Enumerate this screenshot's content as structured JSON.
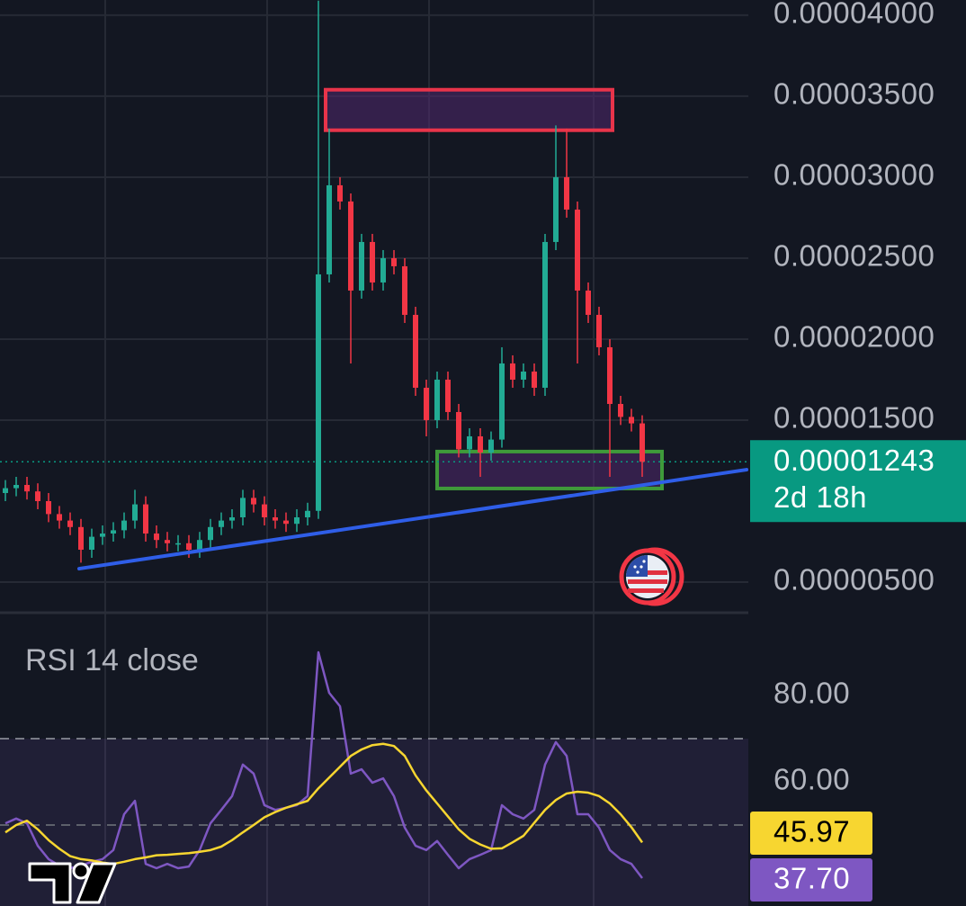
{
  "chart_data": [
    {
      "type": "candlestick",
      "up_color": "#22ab94",
      "down_color": "#f23645",
      "open": [
        1.05e-05,
        1.08e-05,
        1.1e-05,
        1.06e-05,
        1e-05,
        9.2e-06,
        8.8e-06,
        8.4e-06,
        7e-06,
        7.8e-06,
        8e-06,
        8.2e-06,
        8.8e-06,
        9.8e-06,
        8e-06,
        7.6e-06,
        7.4e-06,
        7.4e-06,
        7e-06,
        7.6e-06,
        8.4e-06,
        8.8e-06,
        9e-06,
        1.02e-05,
        9.8e-06,
        9e-06,
        8.8e-06,
        8.6e-06,
        9e-06,
        9.4e-06,
        2.4e-05,
        2.95e-05,
        2.85e-05,
        2.3e-05,
        2.6e-05,
        2.35e-05,
        2.5e-05,
        2.45e-05,
        2.15e-05,
        1.7e-05,
        1.5e-05,
        1.75e-05,
        1.55e-05,
        1.32e-05,
        1.4e-05,
        1.3e-05,
        1.38e-05,
        1.85e-05,
        1.75e-05,
        1.8e-05,
        1.7e-05,
        2.6e-05,
        3e-05,
        2.8e-05,
        2.3e-05,
        2.15e-05,
        1.95e-05,
        1.6e-05,
        1.52e-05,
        1.48e-05
      ],
      "high": [
        1.13e-05,
        1.15e-05,
        1.15e-05,
        1.11e-05,
        1.05e-05,
        9.7e-06,
        9.3e-06,
        8.9e-06,
        8.3e-06,
        8.5e-06,
        8.7e-06,
        9.3e-06,
        1.07e-05,
        1.03e-05,
        8.5e-06,
        8.1e-06,
        7.9e-06,
        7.9e-06,
        8.1e-06,
        8.9e-06,
        9.3e-06,
        9.5e-06,
        1.07e-05,
        1.07e-05,
        1.03e-05,
        9.5e-06,
        9.3e-06,
        9.5e-06,
        9.9e-06,
        4.09e-05,
        3.3e-05,
        3e-05,
        2.9e-05,
        2.65e-05,
        2.65e-05,
        2.55e-05,
        2.55e-05,
        2.5e-05,
        2.2e-05,
        1.75e-05,
        1.8e-05,
        1.8e-05,
        1.6e-05,
        1.45e-05,
        1.45e-05,
        1.43e-05,
        1.95e-05,
        1.9e-05,
        1.85e-05,
        1.85e-05,
        2.65e-05,
        3.32e-05,
        3.3e-05,
        2.85e-05,
        2.35e-05,
        2.2e-05,
        2e-05,
        1.65e-05,
        1.57e-05,
        1.53e-05
      ],
      "low": [
        1e-05,
        1.03e-05,
        1.01e-05,
        9.5e-06,
        8.7e-06,
        8.3e-06,
        7.9e-06,
        6.2e-06,
        6.5e-06,
        7.3e-06,
        7.5e-06,
        7.7e-06,
        8.3e-06,
        7.5e-06,
        7.1e-06,
        6.9e-06,
        6.9e-06,
        6.5e-06,
        6.5e-06,
        7.1e-06,
        7.9e-06,
        8.3e-06,
        8.5e-06,
        9.3e-06,
        8.5e-06,
        8.3e-06,
        8.1e-06,
        8.1e-06,
        8.5e-06,
        8.9e-06,
        2.35e-05,
        2.8e-05,
        1.85e-05,
        2.25e-05,
        2.3e-05,
        2.3e-05,
        2.4e-05,
        2.1e-05,
        1.65e-05,
        1.4e-05,
        1.45e-05,
        1.5e-05,
        1.27e-05,
        1.27e-05,
        1.15e-05,
        1.25e-05,
        1.33e-05,
        1.7e-05,
        1.7e-05,
        1.65e-05,
        1.65e-05,
        2.55e-05,
        2.75e-05,
        1.85e-05,
        2.1e-05,
        1.9e-05,
        1.15e-05,
        1.47e-05,
        1.43e-05,
        1.15e-05
      ],
      "close": [
        1.08e-05,
        1.1e-05,
        1.06e-05,
        1e-05,
        9.2e-06,
        8.8e-06,
        8.4e-06,
        7e-06,
        7.8e-06,
        8e-06,
        8.2e-06,
        8.8e-06,
        9.8e-06,
        8e-06,
        7.6e-06,
        7.4e-06,
        7.4e-06,
        7e-06,
        7.6e-06,
        8.4e-06,
        8.8e-06,
        9e-06,
        1.02e-05,
        9.8e-06,
        9e-06,
        8.8e-06,
        8.6e-06,
        9e-06,
        9.4e-06,
        2.4e-05,
        2.95e-05,
        2.85e-05,
        2.3e-05,
        2.6e-05,
        2.35e-05,
        2.5e-05,
        2.45e-05,
        2.15e-05,
        1.7e-05,
        1.5e-05,
        1.75e-05,
        1.55e-05,
        1.32e-05,
        1.4e-05,
        1.3e-05,
        1.38e-05,
        1.85e-05,
        1.75e-05,
        1.8e-05,
        1.7e-05,
        2.6e-05,
        3e-05,
        2.8e-05,
        2.3e-05,
        2.15e-05,
        1.95e-05,
        1.6e-05,
        1.52e-05,
        1.48e-05,
        1.243e-05
      ],
      "ylim": [
        3.167e-06,
        4.094e-05
      ],
      "yticks": [
        {
          "value": 4e-05,
          "label": "0.00004000"
        },
        {
          "value": 3.5e-05,
          "label": "0.00003500"
        },
        {
          "value": 3e-05,
          "label": "0.00003000"
        },
        {
          "value": 2.5e-05,
          "label": "0.00002500"
        },
        {
          "value": 2e-05,
          "label": "0.00002000"
        },
        {
          "value": 1.5e-05,
          "label": "0.00001500"
        },
        {
          "value": 5e-06,
          "label": "0.00000500"
        }
      ],
      "grid": true,
      "last_price": {
        "value": 1.243e-05,
        "label": "0.00001243",
        "color": "#089981"
      },
      "countdown": "2d 18h",
      "zones": [
        {
          "color": "#e8344a",
          "range": [
            3.29e-05,
            3.54e-05
          ]
        },
        {
          "color": "#3f9a3a",
          "range": [
            1.078e-05,
            1.306e-05
          ]
        }
      ],
      "trendline": {
        "color": "#2f5ee8",
        "values": [
          5.83e-06,
          1.194e-05
        ]
      }
    },
    {
      "type": "line",
      "title": "RSI 14 close",
      "ylim": [
        31.25,
        98.96
      ],
      "yticks": [
        {
          "value": 80,
          "label": "80.00"
        },
        {
          "value": 60,
          "label": "60.00"
        }
      ],
      "band": [
        30,
        70
      ],
      "midline": 50,
      "series": [
        {
          "color": "#7e57c2",
          "values": [
            50.4,
            51.5,
            50.4,
            45.2,
            42.1,
            40.6,
            40.0,
            40.6,
            41.5,
            42.1,
            44.2,
            52.5,
            55.6,
            41.0,
            40.0,
            41.0,
            40.0,
            40.4,
            44.2,
            50.4,
            53.5,
            56.7,
            64.0,
            61.9,
            54.6,
            53.5,
            54.0,
            54.6,
            56.7,
            90.0,
            80.6,
            77.5,
            61.9,
            62.9,
            59.8,
            60.8,
            56.7,
            49.4,
            45.2,
            44.2,
            46.3,
            43.1,
            40.0,
            42.1,
            43.1,
            44.2,
            54.6,
            52.5,
            51.5,
            53.5,
            64.0,
            69.2,
            66.0,
            52.5,
            52.5,
            49.4,
            44.2,
            42.1,
            41.0,
            37.7
          ],
          "last_label": "37.70"
        },
        {
          "color": "#f7d630",
          "values": [
            48.3,
            50.0,
            51.0,
            49.0,
            46.5,
            44.5,
            42.8,
            42.1,
            41.8,
            41.3,
            41.0,
            41.5,
            42.1,
            42.5,
            43.0,
            43.1,
            43.3,
            43.5,
            43.8,
            44.2,
            45.0,
            46.5,
            48.3,
            50.0,
            51.8,
            53.0,
            54.0,
            54.8,
            55.6,
            58.5,
            61.0,
            63.5,
            66.0,
            67.5,
            68.5,
            68.8,
            68.3,
            66.0,
            61.5,
            58.0,
            55.0,
            52.0,
            49.0,
            46.8,
            45.5,
            44.5,
            44.6,
            46.0,
            47.5,
            50.5,
            53.5,
            55.8,
            57.3,
            57.7,
            57.5,
            56.7,
            55.0,
            52.5,
            49.5,
            45.97
          ],
          "last_label": "45.97"
        }
      ]
    }
  ]
}
